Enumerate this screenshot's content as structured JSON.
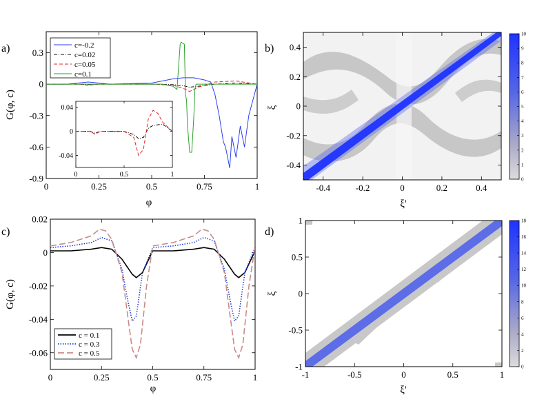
{
  "chart_data": [
    {
      "panel": "a)",
      "type": "line",
      "xlabel": "φ",
      "ylabel": "G(φ, c)",
      "xlim": [
        0,
        1
      ],
      "ylim": [
        -0.9,
        0.5
      ],
      "xticks": [
        "0",
        "0.25",
        "0.5",
        "0.75",
        "1"
      ],
      "yticks": [
        "0.3",
        "0",
        "-0.3",
        "-0.6",
        "-0.9"
      ],
      "legend_position": "top-left",
      "series": [
        {
          "name": "c=-0.2",
          "color": "#2b3ff0",
          "dash": "solid",
          "x": [
            0,
            0.1,
            0.15,
            0.2,
            0.25,
            0.3,
            0.5,
            0.55,
            0.6,
            0.65,
            0.7,
            0.75,
            0.78,
            0.8,
            0.82,
            0.84,
            0.85,
            0.86,
            0.87,
            0.88,
            0.9,
            0.92,
            0.94,
            0.96,
            1
          ],
          "y": [
            0,
            0,
            0.01,
            0.02,
            0.01,
            0,
            0.01,
            0.03,
            0.05,
            0.06,
            0.06,
            0.04,
            0.02,
            -0.1,
            -0.3,
            -0.55,
            -0.6,
            -0.7,
            -0.8,
            -0.5,
            -0.7,
            -0.4,
            -0.6,
            -0.3,
            0
          ]
        },
        {
          "name": "c=0.02",
          "color": "#111111",
          "dash": "dashdot",
          "x": [
            0,
            0.15,
            0.2,
            0.25,
            0.5,
            0.6,
            0.65,
            0.68,
            0.72,
            0.8,
            0.9,
            1
          ],
          "y": [
            0,
            0,
            -0.005,
            0,
            0,
            -0.005,
            -0.015,
            -0.03,
            -0.02,
            0,
            0.01,
            0
          ]
        },
        {
          "name": "c=0.05",
          "color": "#e52222",
          "dash": "dashed",
          "x": [
            0,
            0.15,
            0.2,
            0.25,
            0.5,
            0.6,
            0.65,
            0.68,
            0.72,
            0.8,
            0.9,
            1
          ],
          "y": [
            0,
            0,
            -0.01,
            0,
            0,
            -0.01,
            -0.04,
            -0.07,
            -0.03,
            0.02,
            0.03,
            0
          ]
        },
        {
          "name": "c=0.1",
          "color": "#2ca02c",
          "dash": "solid",
          "x": [
            0,
            0.55,
            0.6,
            0.62,
            0.635,
            0.64,
            0.655,
            0.66,
            0.665,
            0.67,
            0.68,
            0.69,
            0.7,
            0.705,
            0.71,
            0.73,
            0.8,
            1
          ],
          "y": [
            0,
            0,
            -0.02,
            -0.05,
            0.38,
            0.4,
            0.38,
            -0.1,
            -0.15,
            -0.4,
            -0.65,
            -0.65,
            -0.3,
            -0.05,
            0,
            0,
            0,
            0
          ]
        }
      ],
      "inset": {
        "xlim": [
          0,
          1
        ],
        "ylim": [
          -0.06,
          0.05
        ],
        "xticks": [
          "0",
          "0.5",
          "1"
        ],
        "yticks": [
          "0.04",
          "0",
          "-0.04"
        ],
        "series": [
          {
            "name": "c=0.02",
            "color": "#111111",
            "dash": "dashdot",
            "x": [
              0,
              0.15,
              0.2,
              0.25,
              0.5,
              0.6,
              0.65,
              0.7,
              0.75,
              0.8,
              0.9,
              1
            ],
            "y": [
              0,
              0,
              -0.003,
              0,
              0,
              -0.005,
              -0.012,
              -0.01,
              0.005,
              0.01,
              0.012,
              0
            ]
          },
          {
            "name": "c=0.05",
            "color": "#e52222",
            "dash": "dashed",
            "x": [
              0,
              0.15,
              0.2,
              0.25,
              0.5,
              0.6,
              0.65,
              0.7,
              0.75,
              0.8,
              0.85,
              0.9,
              1
            ],
            "y": [
              0,
              0,
              -0.005,
              0,
              0,
              -0.01,
              -0.04,
              -0.03,
              0.02,
              0.035,
              0.03,
              0.015,
              0
            ]
          }
        ]
      }
    },
    {
      "panel": "b)",
      "type": "heatmap",
      "xlabel": "ξ'",
      "ylabel": "ξ",
      "xlim": [
        -0.5,
        0.5
      ],
      "ylim": [
        -0.5,
        0.5
      ],
      "xticks": [
        "-0.4",
        "-0.2",
        "0",
        "0.2",
        "0.4"
      ],
      "yticks": [
        "0.4",
        "0.2",
        "0",
        "-0.2",
        "-0.4"
      ],
      "colorbar": {
        "min": 0,
        "max": 10,
        "ticks": [
          "10",
          "9",
          "8",
          "7",
          "6",
          "5",
          "4",
          "3",
          "2",
          "1",
          "0"
        ],
        "low_color": "#d8d8d8",
        "high_color": "#1f33ff"
      }
    },
    {
      "panel": "c)",
      "type": "line",
      "xlabel": "φ",
      "ylabel": "G(φ, c)",
      "xlim": [
        0,
        1
      ],
      "ylim": [
        -0.07,
        0.02
      ],
      "xticks": [
        "0",
        "0.25",
        "0.5",
        "0.75",
        "1"
      ],
      "yticks": [
        "0.02",
        "0",
        "-0.02",
        "-0.04",
        "-0.06"
      ],
      "legend_position": "bottom-left",
      "series": [
        {
          "name": "c = 0.1",
          "color": "#000000",
          "dash": "solid",
          "x": [
            0,
            0.1,
            0.2,
            0.25,
            0.3,
            0.35,
            0.4,
            0.42,
            0.45,
            0.5,
            0.6,
            0.7,
            0.75,
            0.8,
            0.85,
            0.9,
            0.92,
            0.95,
            1
          ],
          "y": [
            0.001,
            0.001,
            0.002,
            0.003,
            0.002,
            -0.004,
            -0.013,
            -0.015,
            -0.012,
            0.001,
            0.001,
            0.002,
            0.003,
            0.002,
            -0.004,
            -0.013,
            -0.015,
            -0.012,
            0.001
          ]
        },
        {
          "name": "c = 0.3",
          "color": "#1f3fd6",
          "dash": "dotted",
          "x": [
            0,
            0.1,
            0.2,
            0.25,
            0.3,
            0.35,
            0.38,
            0.4,
            0.42,
            0.45,
            0.5,
            0.6,
            0.7,
            0.75,
            0.8,
            0.85,
            0.88,
            0.9,
            0.92,
            0.95,
            1
          ],
          "y": [
            0.003,
            0.004,
            0.006,
            0.009,
            0.007,
            -0.01,
            -0.03,
            -0.041,
            -0.038,
            -0.012,
            0.003,
            0.004,
            0.006,
            0.009,
            0.007,
            -0.01,
            -0.03,
            -0.041,
            -0.038,
            -0.012,
            0.003
          ]
        },
        {
          "name": "c = 0.5",
          "color": "#c98a8a",
          "dash": "longdash",
          "x": [
            0,
            0.1,
            0.2,
            0.24,
            0.27,
            0.3,
            0.35,
            0.38,
            0.4,
            0.42,
            0.44,
            0.47,
            0.5,
            0.6,
            0.7,
            0.74,
            0.77,
            0.8,
            0.85,
            0.88,
            0.9,
            0.92,
            0.94,
            0.97,
            1
          ],
          "y": [
            0.004,
            0.006,
            0.01,
            0.014,
            0.013,
            0.008,
            -0.012,
            -0.04,
            -0.058,
            -0.063,
            -0.055,
            -0.02,
            0.004,
            0.006,
            0.01,
            0.014,
            0.013,
            0.008,
            -0.012,
            -0.04,
            -0.058,
            -0.063,
            -0.055,
            -0.02,
            0.004
          ]
        }
      ]
    },
    {
      "panel": "d)",
      "type": "heatmap",
      "xlabel": "ξ'",
      "ylabel": "ξ",
      "xlim": [
        -1,
        1
      ],
      "ylim": [
        -1,
        1
      ],
      "xticks": [
        "-1",
        "-0.5",
        "0",
        "0.5",
        "1"
      ],
      "yticks": [
        "1",
        "0.5",
        "0",
        "-0.5",
        "-1"
      ],
      "colorbar": {
        "min": 0,
        "max": 18,
        "ticks": [
          "18",
          "16",
          "14",
          "12",
          "10",
          "8",
          "6",
          "4",
          "2",
          "0"
        ],
        "low_color": "#d8d8d8",
        "high_color": "#1f33ff"
      }
    }
  ]
}
